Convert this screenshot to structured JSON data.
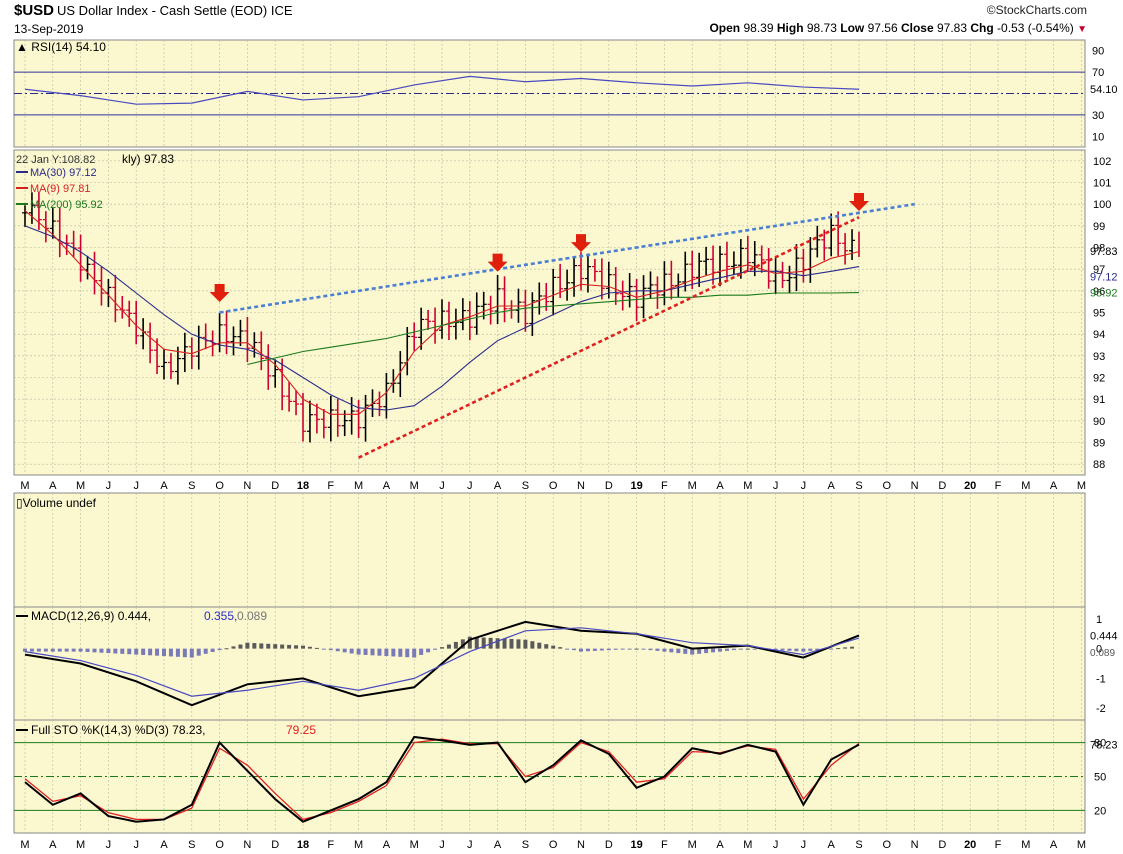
{
  "header": {
    "symbol": "$USD",
    "description": "US Dollar Index - Cash Settle (EOD) ICE",
    "date": "13-Sep-2019",
    "brand": "©StockCharts.com",
    "open_label": "Open",
    "open": "98.39",
    "high_label": "High",
    "high": "98.73",
    "low_label": "Low",
    "low": "97.56",
    "close_label": "Close",
    "close": "97.83",
    "chg_label": "Chg",
    "chg": "-0.53 (-0.54%)"
  },
  "colors": {
    "panel_bg": "#fbf8d0",
    "grid": "#b8b8a0",
    "bar_up": "#000000",
    "bar_down": "#cc0033",
    "ma30": "#2b2b8c",
    "ma9": "#d62020",
    "ma200": "#1a7a1a",
    "trend_top": "#4a7fd4",
    "trend_bottom": "#e02020",
    "arrow": "#e0200c"
  },
  "months": [
    "M",
    "A",
    "M",
    "J",
    "J",
    "A",
    "S",
    "O",
    "N",
    "D",
    "18",
    "F",
    "M",
    "A",
    "M",
    "J",
    "J",
    "A",
    "S",
    "O",
    "N",
    "D",
    "19",
    "F",
    "M",
    "A",
    "M",
    "J",
    "J",
    "A",
    "S",
    "O",
    "N",
    "D",
    "20",
    "F",
    "M",
    "A",
    "M"
  ],
  "chart_data": [
    {
      "type": "line",
      "title": "RSI(14) 54.10",
      "indicator": "RSI(14)",
      "last_value": 54.1,
      "last_label": "54.10",
      "y_ticks": [
        "90",
        "70",
        "30",
        "10"
      ],
      "y_range": [
        0,
        100
      ],
      "reference_lines": [
        70,
        30
      ],
      "x": [
        "2017-03",
        "2017-05",
        "2017-07",
        "2017-09",
        "2017-11",
        "2018-01",
        "2018-03",
        "2018-05",
        "2018-07",
        "2018-09",
        "2018-11",
        "2019-01",
        "2019-03",
        "2019-05",
        "2019-07",
        "2019-09"
      ],
      "series": [
        {
          "name": "RSI(14)",
          "values": [
            54,
            48,
            40,
            41,
            52,
            44,
            47,
            58,
            66,
            61,
            64,
            60,
            57,
            60,
            56,
            54
          ]
        }
      ]
    },
    {
      "type": "bar",
      "subtype": "ohlc",
      "title": "kly) 97.83",
      "hover_text": "22 Jan Y:108.82",
      "last_price_label": "97.83",
      "ma_labels": [
        {
          "text": "MA(30) 97.12",
          "last_label": "97.12"
        },
        {
          "text": "MA(9) 97.81",
          "last_label": "97.81"
        },
        {
          "text": "MA(200) 95.92",
          "last_label": "95.92"
        }
      ],
      "y_ticks": [
        "102",
        "101",
        "100",
        "99",
        "98",
        "97",
        "96",
        "95",
        "94",
        "93",
        "92",
        "91",
        "90",
        "89",
        "88"
      ],
      "y_range": [
        87.5,
        102.5
      ],
      "x": [
        "2017-03",
        "2017-04",
        "2017-05",
        "2017-06",
        "2017-07",
        "2017-08",
        "2017-09",
        "2017-10",
        "2017-11",
        "2017-12",
        "2018-01",
        "2018-02",
        "2018-03",
        "2018-04",
        "2018-05",
        "2018-06",
        "2018-07",
        "2018-08",
        "2018-09",
        "2018-10",
        "2018-11",
        "2018-12",
        "2019-01",
        "2019-02",
        "2019-03",
        "2019-04",
        "2019-05",
        "2019-06",
        "2019-07",
        "2019-08",
        "2019-09"
      ],
      "close": [
        99.6,
        99.2,
        97.0,
        96.1,
        94.0,
        92.6,
        93.1,
        94.3,
        93.5,
        92.2,
        89.7,
        90.3,
        89.9,
        91.5,
        94.1,
        94.8,
        94.6,
        95.8,
        94.8,
        96.3,
        96.9,
        96.4,
        95.6,
        96.4,
        97.0,
        97.3,
        97.7,
        96.5,
        97.4,
        98.6,
        97.83
      ],
      "moving_averages": [
        {
          "name": "MA(30)",
          "values": [
            99.0,
            98.5,
            97.8,
            96.9,
            95.9,
            94.9,
            94.0,
            93.5,
            93.3,
            92.8,
            92.0,
            91.2,
            90.6,
            90.5,
            90.7,
            91.6,
            92.7,
            93.7,
            94.3,
            94.9,
            95.5,
            95.9,
            96.0,
            96.0,
            96.3,
            96.6,
            96.9,
            96.9,
            96.7,
            96.9,
            97.12
          ]
        },
        {
          "name": "MA(9)",
          "values": [
            99.7,
            98.6,
            97.2,
            95.8,
            94.4,
            93.3,
            93.1,
            93.6,
            93.6,
            92.6,
            91.0,
            90.3,
            90.3,
            91.3,
            93.2,
            94.4,
            94.8,
            95.3,
            95.3,
            95.8,
            96.3,
            96.2,
            95.7,
            96.0,
            96.5,
            96.9,
            97.2,
            96.8,
            96.9,
            97.5,
            97.81
          ]
        },
        {
          "name": "MA(200)",
          "values": [
            null,
            null,
            null,
            null,
            null,
            null,
            null,
            null,
            92.6,
            92.9,
            93.2,
            93.4,
            93.6,
            93.8,
            94.1,
            94.4,
            94.7,
            95.0,
            95.2,
            95.3,
            95.4,
            95.5,
            95.6,
            95.7,
            95.7,
            95.8,
            95.8,
            95.9,
            95.9,
            95.9,
            95.92
          ]
        }
      ],
      "trendlines": [
        {
          "name": "resistance",
          "from": [
            "2017-10",
            95.0
          ],
          "to": [
            "2019-11",
            100.0
          ]
        },
        {
          "name": "support",
          "from": [
            "2018-03",
            88.3
          ],
          "to": [
            "2019-09",
            99.4
          ]
        }
      ],
      "annotations": [
        {
          "type": "arrow-down",
          "x": "2017-10",
          "y": 95.3
        },
        {
          "type": "arrow-down",
          "x": "2018-08",
          "y": 96.7
        },
        {
          "type": "arrow-down",
          "x": "2018-11",
          "y": 97.6
        },
        {
          "type": "arrow-down",
          "x": "2019-09",
          "y": 99.5
        }
      ]
    },
    {
      "type": "bar",
      "title": "Volume undef",
      "values": []
    },
    {
      "type": "line",
      "title": "MACD(12,26,9) 0.444, 0.355, 0.089",
      "title_parts": {
        "prefix": "MACD(12,26,9)",
        "macd": "0.444",
        "signal": "0.355",
        "hist": "0.089"
      },
      "y_ticks": [
        "1",
        "0",
        "-1",
        "-2"
      ],
      "y_range": [
        -2.4,
        1.4
      ],
      "last_labels": {
        "macd": "0.444",
        "hist": "0.089"
      },
      "x": [
        "2017-03",
        "2017-05",
        "2017-07",
        "2017-09",
        "2017-11",
        "2018-01",
        "2018-03",
        "2018-05",
        "2018-07",
        "2018-09",
        "2018-11",
        "2019-01",
        "2019-03",
        "2019-05",
        "2019-07",
        "2019-09"
      ],
      "series": [
        {
          "name": "MACD",
          "values": [
            -0.2,
            -0.5,
            -1.1,
            -1.9,
            -1.2,
            -1.0,
            -1.6,
            -1.3,
            0.3,
            0.9,
            0.6,
            0.5,
            0.0,
            0.1,
            -0.3,
            0.444
          ]
        },
        {
          "name": "Signal",
          "values": [
            -0.1,
            -0.4,
            -0.9,
            -1.6,
            -1.4,
            -1.1,
            -1.4,
            -1.0,
            -0.1,
            0.6,
            0.7,
            0.5,
            0.2,
            0.1,
            -0.2,
            0.355
          ]
        },
        {
          "name": "Histogram",
          "values": [
            -0.1,
            -0.1,
            -0.2,
            -0.3,
            0.2,
            0.1,
            -0.2,
            -0.3,
            0.4,
            0.3,
            -0.1,
            0.0,
            -0.2,
            0.0,
            -0.1,
            0.089
          ]
        }
      ]
    },
    {
      "type": "line",
      "title": "Full STO %K(14,3) %D(3) 78.23, 79.25",
      "title_parts": {
        "prefix": "Full STO %K(14,3) %D(3)",
        "k": "78.23",
        "d": "79.25"
      },
      "y_ticks": [
        "80",
        "50",
        "20"
      ],
      "y_range": [
        0,
        100
      ],
      "last_label": "78.23",
      "reference_lines": [
        80,
        50,
        20
      ],
      "x": [
        "2017-03",
        "2017-04",
        "2017-05",
        "2017-06",
        "2017-07",
        "2017-08",
        "2017-09",
        "2017-10",
        "2017-11",
        "2017-12",
        "2018-01",
        "2018-02",
        "2018-03",
        "2018-04",
        "2018-05",
        "2018-06",
        "2018-07",
        "2018-08",
        "2018-09",
        "2018-10",
        "2018-11",
        "2018-12",
        "2019-01",
        "2019-02",
        "2019-03",
        "2019-04",
        "2019-05",
        "2019-06",
        "2019-07",
        "2019-08",
        "2019-09"
      ],
      "series": [
        {
          "name": "%K",
          "values": [
            45,
            25,
            35,
            15,
            10,
            12,
            25,
            80,
            55,
            30,
            10,
            20,
            30,
            45,
            85,
            82,
            78,
            80,
            45,
            60,
            82,
            70,
            40,
            50,
            75,
            70,
            78,
            72,
            25,
            65,
            78.23
          ]
        },
        {
          "name": "%D",
          "values": [
            48,
            28,
            33,
            18,
            12,
            12,
            22,
            75,
            60,
            35,
            12,
            18,
            28,
            42,
            80,
            83,
            79,
            79,
            50,
            58,
            80,
            72,
            45,
            48,
            72,
            71,
            77,
            74,
            30,
            60,
            79.25
          ]
        }
      ]
    }
  ]
}
